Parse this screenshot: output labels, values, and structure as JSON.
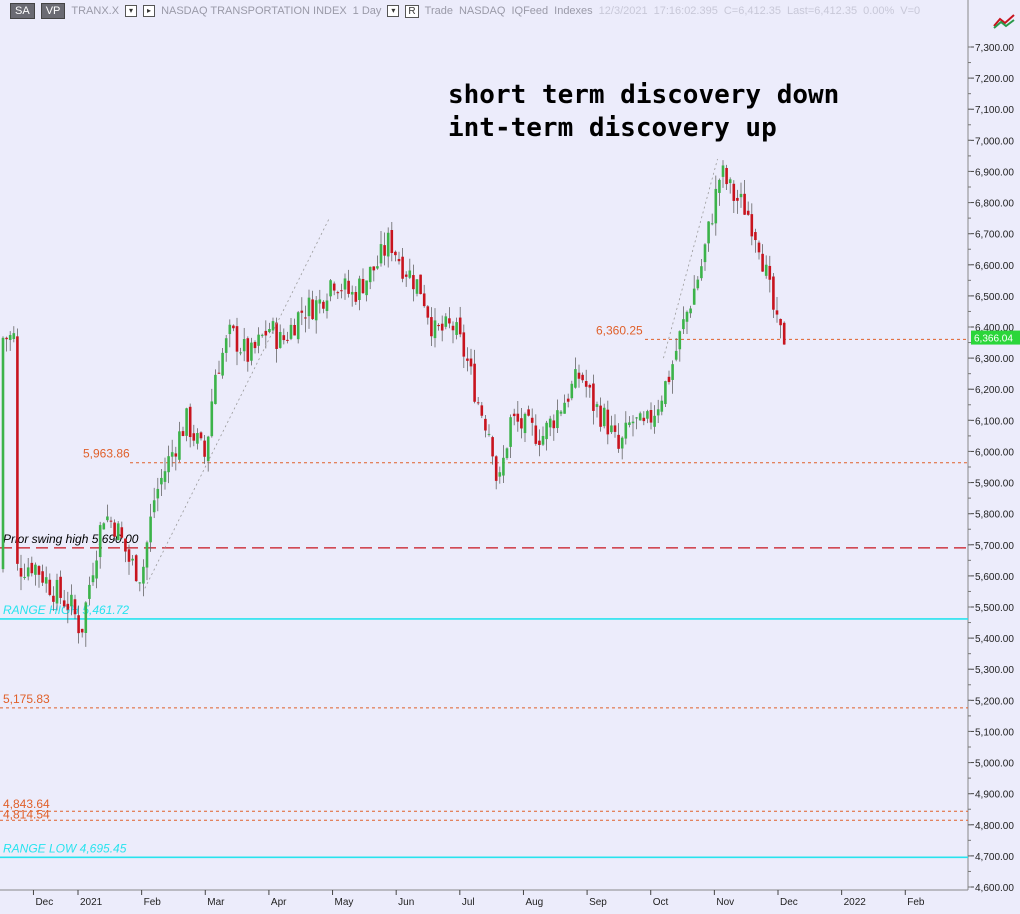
{
  "toolbar": {
    "sa_label": "SA",
    "vp_label": "VP",
    "symbol": "TRANX.X",
    "index_name": "NASDAQ TRANSPORTATION INDEX",
    "interval": "1 Day",
    "r_label": "R",
    "trade": "Trade",
    "exchange": "NASDAQ",
    "feed": "IQFeed",
    "category": "Indexes",
    "date": "12/3/2021",
    "time": "17:16:02.395",
    "close": "C=6,412.35",
    "last": "Last=6,412.35",
    "change": "0.00%",
    "volume": "V=0"
  },
  "annotations": {
    "line1": "short term discovery down",
    "line2": "int-term discovery up"
  },
  "chart_data": {
    "type": "candlestick",
    "symbol": "TRANX.X",
    "y_axis_ticks": [
      "7,300.00",
      "7,200.00",
      "7,100.00",
      "7,000.00",
      "6,900.00",
      "6,800.00",
      "6,700.00",
      "6,600.00",
      "6,500.00",
      "6,400.00",
      "6,300.00",
      "6,200.00",
      "6,100.00",
      "6,000.00",
      "5,900.00",
      "5,800.00",
      "5,700.00",
      "5,600.00",
      "5,500.00",
      "5,400.00",
      "5,300.00",
      "5,200.00",
      "5,100.00",
      "5,000.00",
      "4,900.00",
      "4,800.00",
      "4,700.00",
      "4,600.00"
    ],
    "y_axis_values": [
      7300,
      7200,
      7100,
      7000,
      6900,
      6800,
      6700,
      6600,
      6500,
      6400,
      6300,
      6200,
      6100,
      6000,
      5900,
      5800,
      5700,
      5600,
      5500,
      5400,
      5300,
      5200,
      5100,
      5000,
      4900,
      4800,
      4700,
      4600
    ],
    "ylim": [
      4580,
      7330
    ],
    "x_axis_labels": [
      "Dec",
      "2021",
      "Feb",
      "Mar",
      "Apr",
      "May",
      "Jun",
      "Jul",
      "Aug",
      "Sep",
      "Oct",
      "Nov",
      "Dec",
      "2022",
      "Feb"
    ],
    "x_axis_months": [
      -0.7,
      0,
      1,
      2,
      3,
      4,
      5,
      6,
      7,
      8,
      9,
      10,
      11,
      12,
      13
    ],
    "last_price_label": "6,366.04",
    "last_price": 6366.04,
    "levels": [
      {
        "label": "Prior swing high 5,690.00",
        "value": 5690,
        "style": "long-dash",
        "color": "#c8141e",
        "label_color": "#000000"
      },
      {
        "label": "RANGE HIGH 5,461.72",
        "value": 5461.72,
        "style": "solid",
        "color": "#27e3ee",
        "label_color": "#27e3ee"
      },
      {
        "label": "RANGE LOW 4,695.45",
        "value": 4695.45,
        "style": "solid",
        "color": "#27e3ee",
        "label_color": "#27e3ee"
      },
      {
        "label": "5,963.86",
        "value": 5963.86,
        "style": "dotted",
        "color": "#e0602a",
        "label_color": "#e0602a"
      },
      {
        "label": "6,360.25",
        "value": 6360.25,
        "style": "dotted",
        "color": "#e0602a",
        "label_color": "#e0602a"
      },
      {
        "label": "5,175.83",
        "value": 5175.83,
        "style": "dotted",
        "color": "#e0602a",
        "label_color": "#e0602a"
      },
      {
        "label": "4,843.64",
        "value": 4843.64,
        "style": "dotted",
        "color": "#e0602a",
        "label_color": "#e0602a"
      },
      {
        "label": "4,814.54",
        "value": 4814.54,
        "style": "dotted",
        "color": "#e0602a",
        "label_color": "#e0602a"
      }
    ],
    "price_path": [
      [
        -1,
        5620
      ],
      [
        -0.7,
        5640
      ],
      [
        -0.4,
        5560
      ],
      [
        -0.1,
        5500
      ],
      [
        0.05,
        5420
      ],
      [
        0.2,
        5600
      ],
      [
        0.4,
        5800
      ],
      [
        0.6,
        5760
      ],
      [
        0.8,
        5650
      ],
      [
        1.0,
        5600
      ],
      [
        1.2,
        5850
      ],
      [
        1.4,
        5960
      ],
      [
        1.7,
        6100
      ],
      [
        2.0,
        5980
      ],
      [
        2.15,
        6250
      ],
      [
        2.4,
        6380
      ],
      [
        2.7,
        6300
      ],
      [
        3.0,
        6400
      ],
      [
        3.2,
        6350
      ],
      [
        3.5,
        6450
      ],
      [
        3.8,
        6480
      ],
      [
        4.0,
        6560
      ],
      [
        4.3,
        6500
      ],
      [
        4.7,
        6600
      ],
      [
        4.9,
        6680
      ],
      [
        5.1,
        6600
      ],
      [
        5.4,
        6520
      ],
      [
        5.6,
        6380
      ],
      [
        5.9,
        6400
      ],
      [
        6.1,
        6300
      ],
      [
        6.3,
        6150
      ],
      [
        6.5,
        6050
      ],
      [
        6.6,
        5870
      ],
      [
        6.8,
        6100
      ],
      [
        7.0,
        6080
      ],
      [
        7.3,
        6050
      ],
      [
        7.6,
        6150
      ],
      [
        7.9,
        6250
      ],
      [
        8.1,
        6150
      ],
      [
        8.3,
        6100
      ],
      [
        8.5,
        6000
      ],
      [
        8.7,
        6100
      ],
      [
        8.9,
        6070
      ],
      [
        9.1,
        6150
      ],
      [
        9.3,
        6250
      ],
      [
        9.5,
        6400
      ],
      [
        9.8,
        6600
      ],
      [
        10.0,
        6800
      ],
      [
        10.1,
        6900
      ],
      [
        10.3,
        6820
      ],
      [
        10.5,
        6780
      ],
      [
        10.7,
        6680
      ],
      [
        10.9,
        6480
      ],
      [
        11.0,
        6380
      ],
      [
        11.1,
        6366.04
      ]
    ]
  }
}
